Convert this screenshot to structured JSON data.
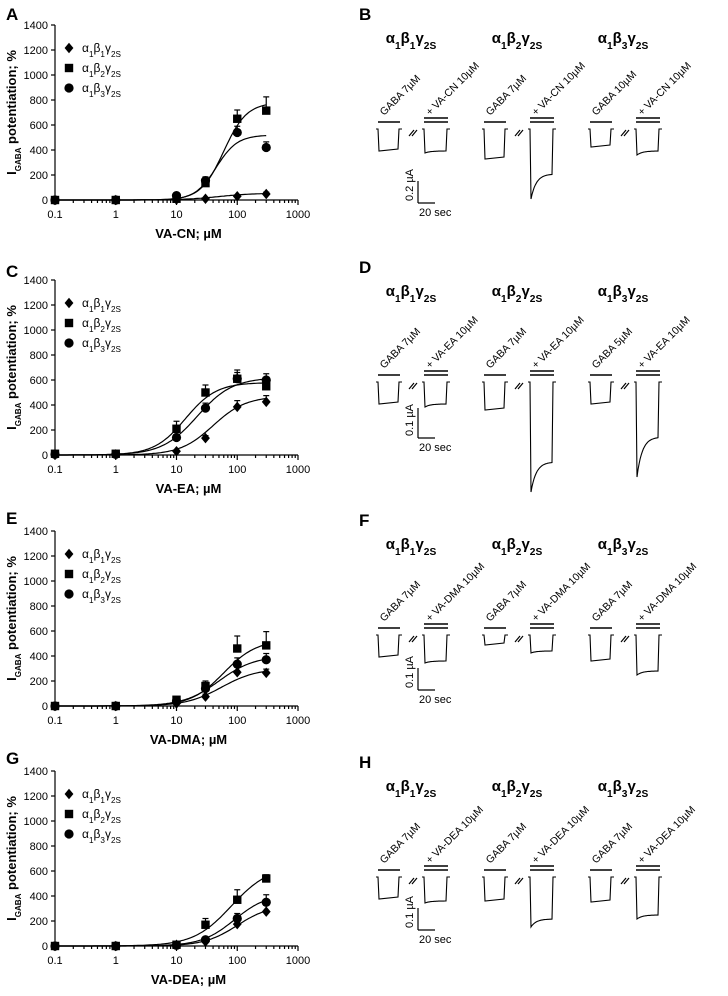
{
  "chart_data": [
    {
      "panel": "A",
      "type": "scatter",
      "title": "",
      "xlabel": "VA-CN; µM",
      "ylabel_main": "I",
      "ylabel_sub": "GABA",
      "ylabel_tail": " potentiation; %",
      "x_scale": "log",
      "xlim": [
        0.1,
        1000
      ],
      "ylim": [
        0,
        1400
      ],
      "xticks": [
        "0.1",
        "1",
        "10",
        "100",
        "1000"
      ],
      "yticks": [
        "0",
        "200",
        "400",
        "600",
        "800",
        "1000",
        "1200",
        "1400"
      ],
      "x": [
        0.1,
        1,
        10,
        30,
        100,
        300
      ],
      "series": [
        {
          "name": "α1β1γ2S",
          "marker": "diamond",
          "values": [
            0,
            0,
            3,
            10,
            30,
            48
          ],
          "err": [
            0,
            0,
            3,
            5,
            10,
            15
          ],
          "ec50": 50,
          "emax": 55,
          "hill": 1.5
        },
        {
          "name": "α1β2γ2S",
          "marker": "square",
          "values": [
            0,
            0,
            10,
            135,
            650,
            715
          ],
          "err": [
            0,
            0,
            10,
            30,
            70,
            110
          ],
          "ec50": 60,
          "emax": 780,
          "hill": 2.3
        },
        {
          "name": "α1β3γ2S",
          "marker": "circle",
          "values": [
            0,
            0,
            35,
            155,
            540,
            420
          ],
          "err": [
            0,
            0,
            10,
            30,
            50,
            45
          ],
          "ec50": 45,
          "emax": 520,
          "hill": 2.5
        }
      ]
    },
    {
      "panel": "C",
      "type": "scatter",
      "title": "",
      "xlabel": "VA-EA; µM",
      "ylabel_main": "I",
      "ylabel_sub": "GABA",
      "ylabel_tail": " potentiation; %",
      "x_scale": "log",
      "xlim": [
        0.1,
        1000
      ],
      "ylim": [
        0,
        1400
      ],
      "xticks": [
        "0.1",
        "1",
        "10",
        "100",
        "1000"
      ],
      "yticks": [
        "0",
        "200",
        "400",
        "600",
        "800",
        "1000",
        "1200",
        "1400"
      ],
      "x": [
        0.1,
        1,
        10,
        30,
        100,
        300
      ],
      "series": [
        {
          "name": "α1β1γ2S",
          "marker": "diamond",
          "values": [
            5,
            5,
            30,
            135,
            385,
            425
          ],
          "err": [
            0,
            0,
            10,
            20,
            50,
            50
          ],
          "ec50": 40,
          "emax": 470,
          "hill": 1.6
        },
        {
          "name": "α1β2γ2S",
          "marker": "square",
          "values": [
            10,
            10,
            210,
            500,
            610,
            550
          ],
          "err": [
            0,
            0,
            60,
            60,
            70,
            70
          ],
          "ec50": 14,
          "emax": 580,
          "hill": 1.7
        },
        {
          "name": "α1β3γ2S",
          "marker": "circle",
          "values": [
            5,
            5,
            140,
            375,
            610,
            600
          ],
          "err": [
            0,
            0,
            40,
            40,
            50,
            50
          ],
          "ec50": 22,
          "emax": 620,
          "hill": 1.5
        }
      ]
    },
    {
      "panel": "E",
      "type": "scatter",
      "title": "",
      "xlabel": "VA-DMA; µM",
      "ylabel_main": "I",
      "ylabel_sub": "GABA",
      "ylabel_tail": " potentiation; %",
      "x_scale": "log",
      "xlim": [
        0.1,
        1000
      ],
      "ylim": [
        0,
        1400
      ],
      "xticks": [
        "0.1",
        "1",
        "10",
        "100",
        "1000"
      ],
      "yticks": [
        "0",
        "200",
        "400",
        "600",
        "800",
        "1000",
        "1200",
        "1400"
      ],
      "x": [
        0.1,
        1,
        10,
        30,
        100,
        300
      ],
      "series": [
        {
          "name": "α1β1γ2S",
          "marker": "diamond",
          "values": [
            0,
            0,
            20,
            75,
            270,
            265
          ],
          "err": [
            0,
            0,
            10,
            20,
            40,
            30
          ],
          "ec50": 55,
          "emax": 300,
          "hill": 1.5
        },
        {
          "name": "α1β2γ2S",
          "marker": "square",
          "values": [
            0,
            0,
            50,
            160,
            460,
            485
          ],
          "err": [
            0,
            0,
            15,
            40,
            100,
            110
          ],
          "ec50": 60,
          "emax": 530,
          "hill": 1.6
        },
        {
          "name": "α1β3γ2S",
          "marker": "circle",
          "values": [
            0,
            0,
            40,
            140,
            335,
            370
          ],
          "err": [
            0,
            0,
            10,
            30,
            50,
            50
          ],
          "ec50": 50,
          "emax": 400,
          "hill": 1.5
        }
      ]
    },
    {
      "panel": "G",
      "type": "scatter",
      "title": "",
      "xlabel": "VA-DEA; µM",
      "ylabel_main": "I",
      "ylabel_sub": "GABA",
      "ylabel_tail": " potentiation; %",
      "x_scale": "log",
      "xlim": [
        0.1,
        1000
      ],
      "ylim": [
        0,
        1400
      ],
      "xticks": [
        "0.1",
        "1",
        "10",
        "100",
        "1000"
      ],
      "yticks": [
        "0",
        "200",
        "400",
        "600",
        "800",
        "1000",
        "1200",
        "1400"
      ],
      "x": [
        0.1,
        1,
        10,
        30,
        100,
        300
      ],
      "series": [
        {
          "name": "α1β1γ2S",
          "marker": "diamond",
          "values": [
            0,
            0,
            10,
            35,
            175,
            275
          ],
          "err": [
            0,
            0,
            10,
            15,
            30,
            50
          ],
          "ec50": 100,
          "emax": 330,
          "hill": 1.6
        },
        {
          "name": "α1β2γ2S",
          "marker": "square",
          "values": [
            0,
            0,
            10,
            170,
            370,
            540
          ],
          "err": [
            0,
            0,
            15,
            50,
            80,
            30
          ],
          "ec50": 80,
          "emax": 640,
          "hill": 1.4
        },
        {
          "name": "α1β3γ2S",
          "marker": "circle",
          "values": [
            0,
            0,
            5,
            50,
            220,
            350
          ],
          "err": [
            0,
            0,
            10,
            20,
            40,
            60
          ],
          "ec50": 90,
          "emax": 420,
          "hill": 1.6
        }
      ]
    }
  ],
  "trace_panels": [
    {
      "panel": "B",
      "drug": "VA-CN 10µM",
      "columns": [
        {
          "title": "α1β1γ2S",
          "gaba": "GABA 7µM",
          "drug_label": "+ VA-CN 10µM"
        },
        {
          "title": "α1β2γ2S",
          "gaba": "GABA 7µM",
          "drug_label": "+ VA-CN 10µM"
        },
        {
          "title": "α1β3γ2S",
          "gaba": "GABA 10µM",
          "drug_label": "+ VA-CN 10µM"
        }
      ],
      "scale_current": "0.2 µA",
      "scale_time": "20 sec"
    },
    {
      "panel": "D",
      "drug": "VA-EA 10µM",
      "columns": [
        {
          "title": "α1β1γ2S",
          "gaba": "GABA 7µM",
          "drug_label": "+ VA-EA 10µM"
        },
        {
          "title": "α1β2γ2S",
          "gaba": "GABA 7µM",
          "drug_label": "+ VA-EA 10µM"
        },
        {
          "title": "α1β3γ2S",
          "gaba": "GABA 5µM",
          "drug_label": "+ VA-EA 10µM"
        }
      ],
      "scale_current": "0.1 µA",
      "scale_time": "20 sec"
    },
    {
      "panel": "F",
      "drug": "VA-DMA 10µM",
      "columns": [
        {
          "title": "α1β1γ2S",
          "gaba": "GABA 7µM",
          "drug_label": "+ VA-DMA 10µM"
        },
        {
          "title": "α1β2γ2S",
          "gaba": "GABA 7µM",
          "drug_label": "+ VA-DMA 10µM"
        },
        {
          "title": "α1β3γ2S",
          "gaba": "GABA 7µM",
          "drug_label": "+ VA-DMA 10µM"
        }
      ],
      "scale_current": "0.1 µA",
      "scale_time": "20 sec"
    },
    {
      "panel": "H",
      "drug": "VA-DEA 10µM",
      "columns": [
        {
          "title": "α1β1γ2S",
          "gaba": "GABA 7µM",
          "drug_label": "+ VA-DEA 10µM"
        },
        {
          "title": "α1β2γ2S",
          "gaba": "GABA 7µM",
          "drug_label": "+ VA-DEA 10µM"
        },
        {
          "title": "α1β3γ2S",
          "gaba": "GABA 7µM",
          "drug_label": "+ VA-DEA 10µM"
        }
      ],
      "scale_current": "0.1 µA",
      "scale_time": "20 sec"
    }
  ]
}
